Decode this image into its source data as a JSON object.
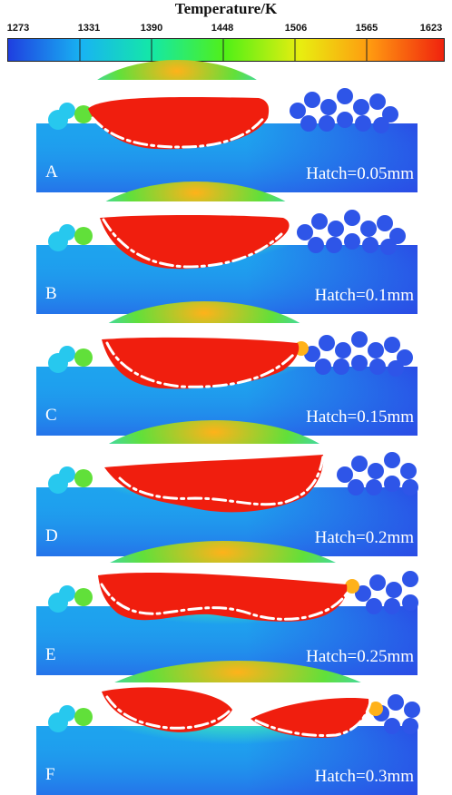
{
  "colorbar": {
    "title": "Temperature/K",
    "ticks": [
      "1273",
      "1331",
      "1390",
      "1448",
      "1506",
      "1565",
      "1623"
    ],
    "colors": [
      "#1f3fe0",
      "#18b4f2",
      "#14e8a6",
      "#52f016",
      "#e8ee10",
      "#ff9a10",
      "#f0220e"
    ]
  },
  "palette": {
    "substrate_deep": "#2a4ce6",
    "substrate_mid": "#1ea3ee",
    "heat_zone_outer": "#35d6c8",
    "heat_zone_mid": "#61e03a",
    "heat_zone_inner": "#ffb21a",
    "melt_pool": "#f01e0e",
    "powder_blue": "#2e55e8",
    "powder_cyan": "#27c8ee",
    "melt_line": "#ffffff"
  },
  "panels": [
    {
      "letter": "A",
      "hatch": "Hatch=0.05mm"
    },
    {
      "letter": "B",
      "hatch": "Hatch=0.1mm"
    },
    {
      "letter": "C",
      "hatch": "Hatch=0.15mm"
    },
    {
      "letter": "D",
      "hatch": "Hatch=0.2mm"
    },
    {
      "letter": "E",
      "hatch": "Hatch=0.25mm"
    },
    {
      "letter": "F",
      "hatch": "Hatch=0.3mm"
    }
  ]
}
